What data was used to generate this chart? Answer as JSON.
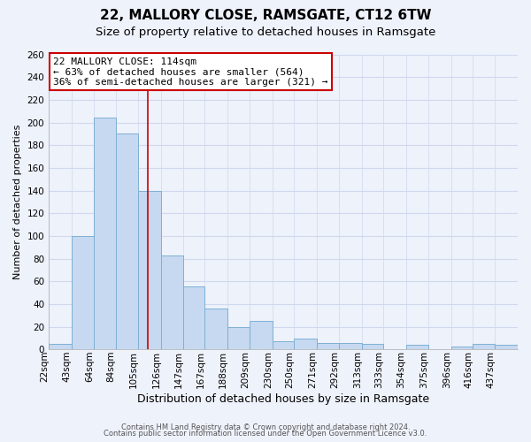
{
  "title": "22, MALLORY CLOSE, RAMSGATE, CT12 6TW",
  "subtitle": "Size of property relative to detached houses in Ramsgate",
  "xlabel": "Distribution of detached houses by size in Ramsgate",
  "ylabel": "Number of detached properties",
  "bar_labels": [
    "22sqm",
    "43sqm",
    "64sqm",
    "84sqm",
    "105sqm",
    "126sqm",
    "147sqm",
    "167sqm",
    "188sqm",
    "209sqm",
    "230sqm",
    "250sqm",
    "271sqm",
    "292sqm",
    "313sqm",
    "333sqm",
    "354sqm",
    "375sqm",
    "396sqm",
    "416sqm",
    "437sqm"
  ],
  "bar_values": [
    5,
    100,
    204,
    190,
    140,
    83,
    56,
    36,
    20,
    25,
    7,
    10,
    6,
    6,
    5,
    0,
    4,
    0,
    3,
    5,
    4
  ],
  "bar_color": "#c6d9f0",
  "bar_edge_color": "#7eb0d4",
  "property_line_x": 114,
  "bin_edges": [
    22,
    43,
    64,
    84,
    105,
    126,
    147,
    167,
    188,
    209,
    230,
    250,
    271,
    292,
    313,
    333,
    354,
    375,
    396,
    416,
    437,
    458
  ],
  "vline_color": "#cc0000",
  "annotation_line1": "22 MALLORY CLOSE: 114sqm",
  "annotation_line2": "← 63% of detached houses are smaller (564)",
  "annotation_line3": "36% of semi-detached houses are larger (321) →",
  "annotation_box_color": "#ffffff",
  "annotation_box_edgecolor": "#cc0000",
  "ylim": [
    0,
    260
  ],
  "yticks": [
    0,
    20,
    40,
    60,
    80,
    100,
    120,
    140,
    160,
    180,
    200,
    220,
    240,
    260
  ],
  "footer1": "Contains HM Land Registry data © Crown copyright and database right 2024.",
  "footer2": "Contains public sector information licensed under the Open Government Licence v3.0.",
  "bg_color": "#eef2fb",
  "plot_bg_color": "#eef2fb",
  "grid_color": "#d0d8ee",
  "title_fontsize": 11,
  "subtitle_fontsize": 9.5,
  "xlabel_fontsize": 9,
  "ylabel_fontsize": 8,
  "tick_fontsize": 7.5,
  "footer_fontsize": 6,
  "annotation_fontsize": 8
}
